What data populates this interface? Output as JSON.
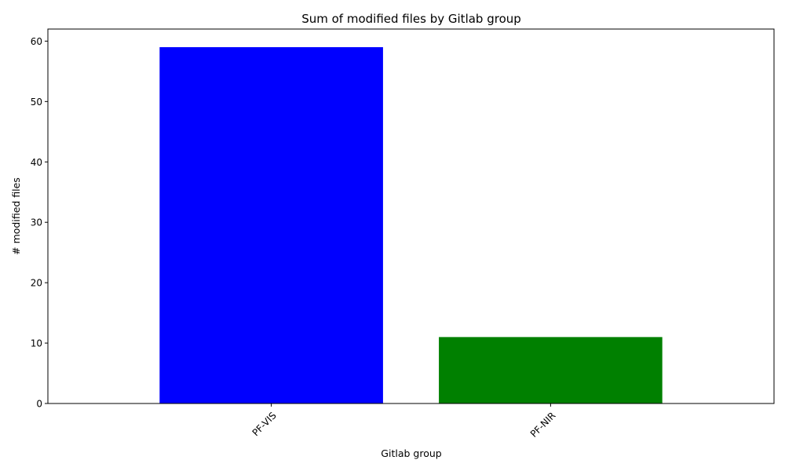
{
  "chart_data": {
    "type": "bar",
    "title": "Sum of modified files by Gitlab group",
    "xlabel": "Gitlab group",
    "ylabel": "# modified files",
    "categories": [
      "PF-VIS",
      "PF-NIR"
    ],
    "values": [
      59,
      11
    ],
    "colors": [
      "#0000ff",
      "#008000"
    ],
    "ylim": [
      0,
      62
    ],
    "yticks": [
      0,
      10,
      20,
      30,
      40,
      50,
      60
    ],
    "xtick_rotation": 45,
    "grid": false,
    "legend": "none"
  }
}
